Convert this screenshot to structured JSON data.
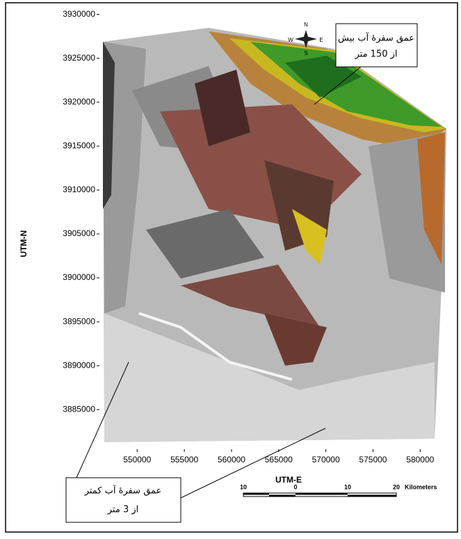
{
  "map": {
    "x_label": "UTM-E",
    "y_label": "UTM-N",
    "xlim": [
      546000,
      583000
    ],
    "ylim": [
      3880500,
      3931000
    ],
    "xticks": [
      550000,
      555000,
      560000,
      565000,
      570000,
      575000,
      580000
    ],
    "yticks": [
      3930000,
      3925000,
      3920000,
      3915000,
      3910000,
      3905000,
      3900000,
      3895000,
      3890000,
      3885000
    ]
  },
  "compass": {
    "n": "N",
    "s": "S",
    "e": "E",
    "w": "W"
  },
  "annotations": [
    {
      "lines": [
        "عمق سفرۀ آب بیش",
        "از 150 متر"
      ]
    },
    {
      "lines": [
        "عمق سفرۀ آب کمتر",
        "از 3 متر"
      ]
    }
  ],
  "scale_bar": {
    "ticks": [
      "10",
      "0",
      "10",
      "20"
    ],
    "unit": "Kilometers"
  }
}
